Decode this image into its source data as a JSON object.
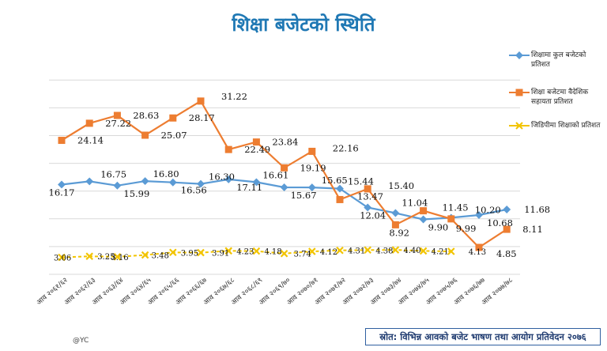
{
  "page": {
    "title": "शिक्षा बजेटको स्थिति",
    "credit": "@YC",
    "source_note": "स्रोत: विभिन्न आवको बजेट भाषण तथा आयोग प्रतिवेदन २०७६"
  },
  "chart_data": {
    "type": "line",
    "title": "शिक्षा बजेटको स्थिति",
    "xlabel": "",
    "ylabel": "",
    "categories": [
      "आव २०६१/६२",
      "आव २०६२/६३",
      "आव २०६३/६४",
      "आव २०६४/६५",
      "आव २०६५/६६",
      "आव २०६६/६७",
      "आव २०६७/६८",
      "आव २०६८/६९",
      "आव २०६९/७०",
      "आव २०७०/७१",
      "आव २०७१/७२",
      "आव २०७२/७३",
      "आव २०७३/७४",
      "आव २०७४/७५",
      "आव २०७५/७६",
      "आव २०७६/७७",
      "आव २०७७/७८"
    ],
    "ylim": [
      0,
      35
    ],
    "grid": true,
    "legend_position": "right",
    "series": [
      {
        "name": "शिक्षामा कुल बजेटको प्रतिशत",
        "color": "#5b9bd5",
        "marker": "diamond",
        "values": [
          16.17,
          16.75,
          15.99,
          16.8,
          16.56,
          16.3,
          17.11,
          16.61,
          15.67,
          15.65,
          15.44,
          12.04,
          11.04,
          9.9,
          10.2,
          10.68,
          11.68
        ]
      },
      {
        "name": "शिक्षा बजेटमा वैदेशिक सहायता प्रतिशत",
        "color": "#ed7d31",
        "marker": "square",
        "values": [
          24.14,
          27.22,
          28.63,
          25.07,
          28.17,
          31.22,
          22.49,
          23.84,
          19.19,
          22.16,
          13.47,
          15.4,
          8.92,
          11.45,
          9.99,
          4.85,
          8.11
        ]
      },
      {
        "name": "जिडिपीमा शिक्षाको प्रतिशत",
        "color": "#f2c400",
        "marker": "x",
        "values": [
          3.06,
          3.25,
          3.16,
          3.48,
          3.95,
          3.91,
          4.23,
          4.18,
          3.74,
          4.12,
          4.31,
          4.38,
          4.4,
          4.21,
          4.13,
          null,
          null
        ]
      }
    ]
  }
}
